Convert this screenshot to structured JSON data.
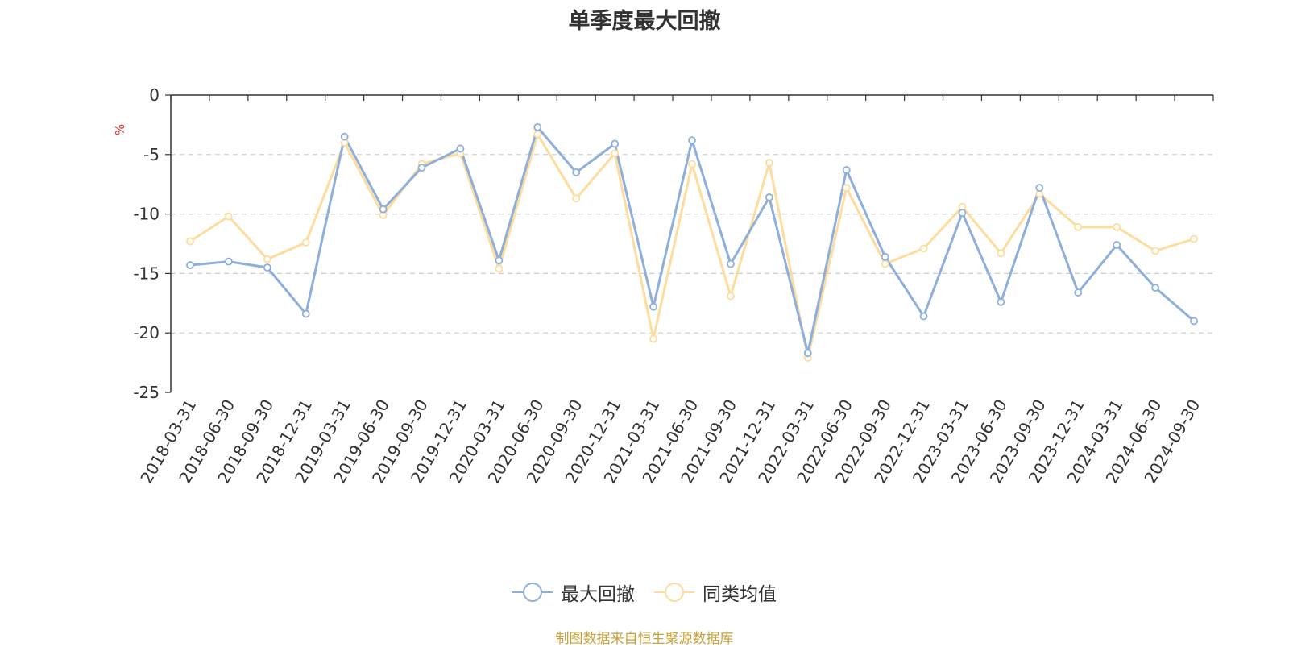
{
  "chart_data": {
    "type": "line",
    "title": "单季度最大回撤",
    "ylabel": "%",
    "xlabel": "",
    "ylim": [
      -25,
      0
    ],
    "yticks": [
      0,
      -5,
      -10,
      -15,
      -20,
      -25
    ],
    "grid": true,
    "legend_position": "bottom-center",
    "categories": [
      "2018-03-31",
      "2018-06-30",
      "2018-09-30",
      "2018-12-31",
      "2019-03-31",
      "2019-06-30",
      "2019-09-30",
      "2019-12-31",
      "2020-03-31",
      "2020-06-30",
      "2020-09-30",
      "2020-12-31",
      "2021-03-31",
      "2021-06-30",
      "2021-09-30",
      "2021-12-31",
      "2022-03-31",
      "2022-06-30",
      "2022-09-30",
      "2022-12-31",
      "2023-03-31",
      "2023-06-30",
      "2023-09-30",
      "2023-12-31",
      "2024-03-31",
      "2024-06-30",
      "2024-09-30"
    ],
    "series": [
      {
        "name": "最大回撤",
        "color": "#8eaedc",
        "values": [
          -14.3,
          -14.0,
          -14.5,
          -18.4,
          -3.5,
          -9.6,
          -6.1,
          -4.5,
          -13.9,
          -2.7,
          -6.5,
          -4.1,
          -17.8,
          -3.8,
          -14.2,
          -8.6,
          -21.7,
          -6.3,
          -13.6,
          -18.6,
          -9.9,
          -17.4,
          -7.8,
          -16.6,
          -12.6,
          -16.2,
          -19.0
        ]
      },
      {
        "name": "同类均值",
        "color": "#fddc9d",
        "values": [
          -12.3,
          -10.2,
          -13.8,
          -12.4,
          -4.0,
          -10.1,
          -5.8,
          -4.9,
          -14.6,
          -3.3,
          -8.7,
          -4.9,
          -20.5,
          -5.8,
          -16.9,
          -5.7,
          -22.1,
          -7.8,
          -14.2,
          -12.9,
          -9.4,
          -13.3,
          -8.3,
          -11.1,
          -11.1,
          -13.1,
          -12.1
        ]
      }
    ]
  },
  "footer": {
    "source": "制图数据来自恒生聚源数据库"
  }
}
